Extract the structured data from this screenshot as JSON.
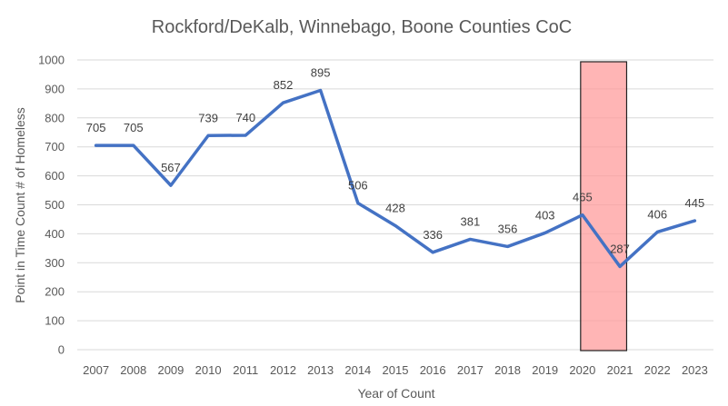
{
  "chart_data": {
    "type": "line",
    "title": "Rockford/DeKalb, Winnebago, Boone Counties CoC",
    "xlabel": "Year of Count",
    "ylabel": "Point in Time Count # of Homeless",
    "ylim": [
      0,
      1000
    ],
    "ytick_step": 100,
    "grid": true,
    "categories": [
      "2007",
      "2008",
      "2009",
      "2010",
      "2011",
      "2012",
      "2013",
      "2014",
      "2015",
      "2016",
      "2017",
      "2018",
      "2019",
      "2020",
      "2021",
      "2022",
      "2023"
    ],
    "series": [
      {
        "values": [
          705,
          705,
          567,
          739,
          740,
          852,
          895,
          506,
          428,
          336,
          381,
          356,
          403,
          465,
          287,
          406,
          445
        ],
        "color": "#4472c4"
      }
    ],
    "highlight": {
      "from": "2020",
      "to": "2021",
      "color": "#ff9999"
    }
  }
}
